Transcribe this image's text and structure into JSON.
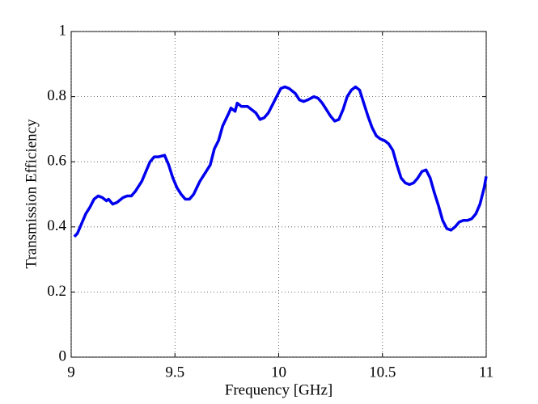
{
  "chart_data": {
    "type": "line",
    "xlabel": "Frequency [GHz]",
    "ylabel": "Transmission Efficiency",
    "x": [
      9.015,
      9.03,
      9.05,
      9.07,
      9.09,
      9.11,
      9.13,
      9.15,
      9.17,
      9.18,
      9.2,
      9.22,
      9.25,
      9.27,
      9.29,
      9.31,
      9.34,
      9.36,
      9.38,
      9.4,
      9.42,
      9.45,
      9.47,
      9.49,
      9.51,
      9.53,
      9.55,
      9.57,
      9.59,
      9.62,
      9.65,
      9.67,
      9.69,
      9.71,
      9.73,
      9.76,
      9.77,
      9.79,
      9.8,
      9.82,
      9.85,
      9.87,
      9.89,
      9.91,
      9.93,
      9.95,
      9.97,
      9.99,
      10.01,
      10.03,
      10.05,
      10.08,
      10.1,
      10.12,
      10.14,
      10.17,
      10.19,
      10.21,
      10.23,
      10.25,
      10.27,
      10.29,
      10.31,
      10.33,
      10.35,
      10.37,
      10.39,
      10.41,
      10.43,
      10.45,
      10.47,
      10.49,
      10.51,
      10.53,
      10.55,
      10.57,
      10.59,
      10.61,
      10.63,
      10.65,
      10.67,
      10.69,
      10.71,
      10.73,
      10.75,
      10.77,
      10.79,
      10.81,
      10.83,
      10.85,
      10.87,
      10.89,
      10.91,
      10.93,
      10.95,
      10.97,
      10.99,
      11.0
    ],
    "series": [
      {
        "color": "#0000ee",
        "values": [
          0.37,
          0.38,
          0.41,
          0.44,
          0.46,
          0.485,
          0.495,
          0.49,
          0.48,
          0.485,
          0.47,
          0.475,
          0.49,
          0.495,
          0.495,
          0.51,
          0.54,
          0.57,
          0.6,
          0.615,
          0.615,
          0.62,
          0.59,
          0.55,
          0.52,
          0.5,
          0.485,
          0.485,
          0.5,
          0.54,
          0.57,
          0.59,
          0.64,
          0.665,
          0.71,
          0.75,
          0.765,
          0.755,
          0.78,
          0.77,
          0.77,
          0.76,
          0.75,
          0.73,
          0.735,
          0.75,
          0.775,
          0.8,
          0.825,
          0.83,
          0.825,
          0.81,
          0.79,
          0.785,
          0.79,
          0.8,
          0.795,
          0.78,
          0.76,
          0.74,
          0.725,
          0.73,
          0.76,
          0.8,
          0.82,
          0.83,
          0.82,
          0.78,
          0.74,
          0.705,
          0.68,
          0.67,
          0.665,
          0.655,
          0.635,
          0.59,
          0.55,
          0.535,
          0.53,
          0.535,
          0.55,
          0.57,
          0.575,
          0.55,
          0.505,
          0.465,
          0.42,
          0.395,
          0.39,
          0.4,
          0.415,
          0.42,
          0.42,
          0.425,
          0.44,
          0.47,
          0.52,
          0.555
        ]
      }
    ],
    "xlim": [
      9,
      11
    ],
    "xticks": [
      9,
      9.5,
      10,
      10.5,
      11
    ],
    "ylim": [
      0,
      1
    ],
    "yticks": [
      0,
      0.2,
      0.4,
      0.6,
      0.8,
      1
    ],
    "grid": true
  }
}
